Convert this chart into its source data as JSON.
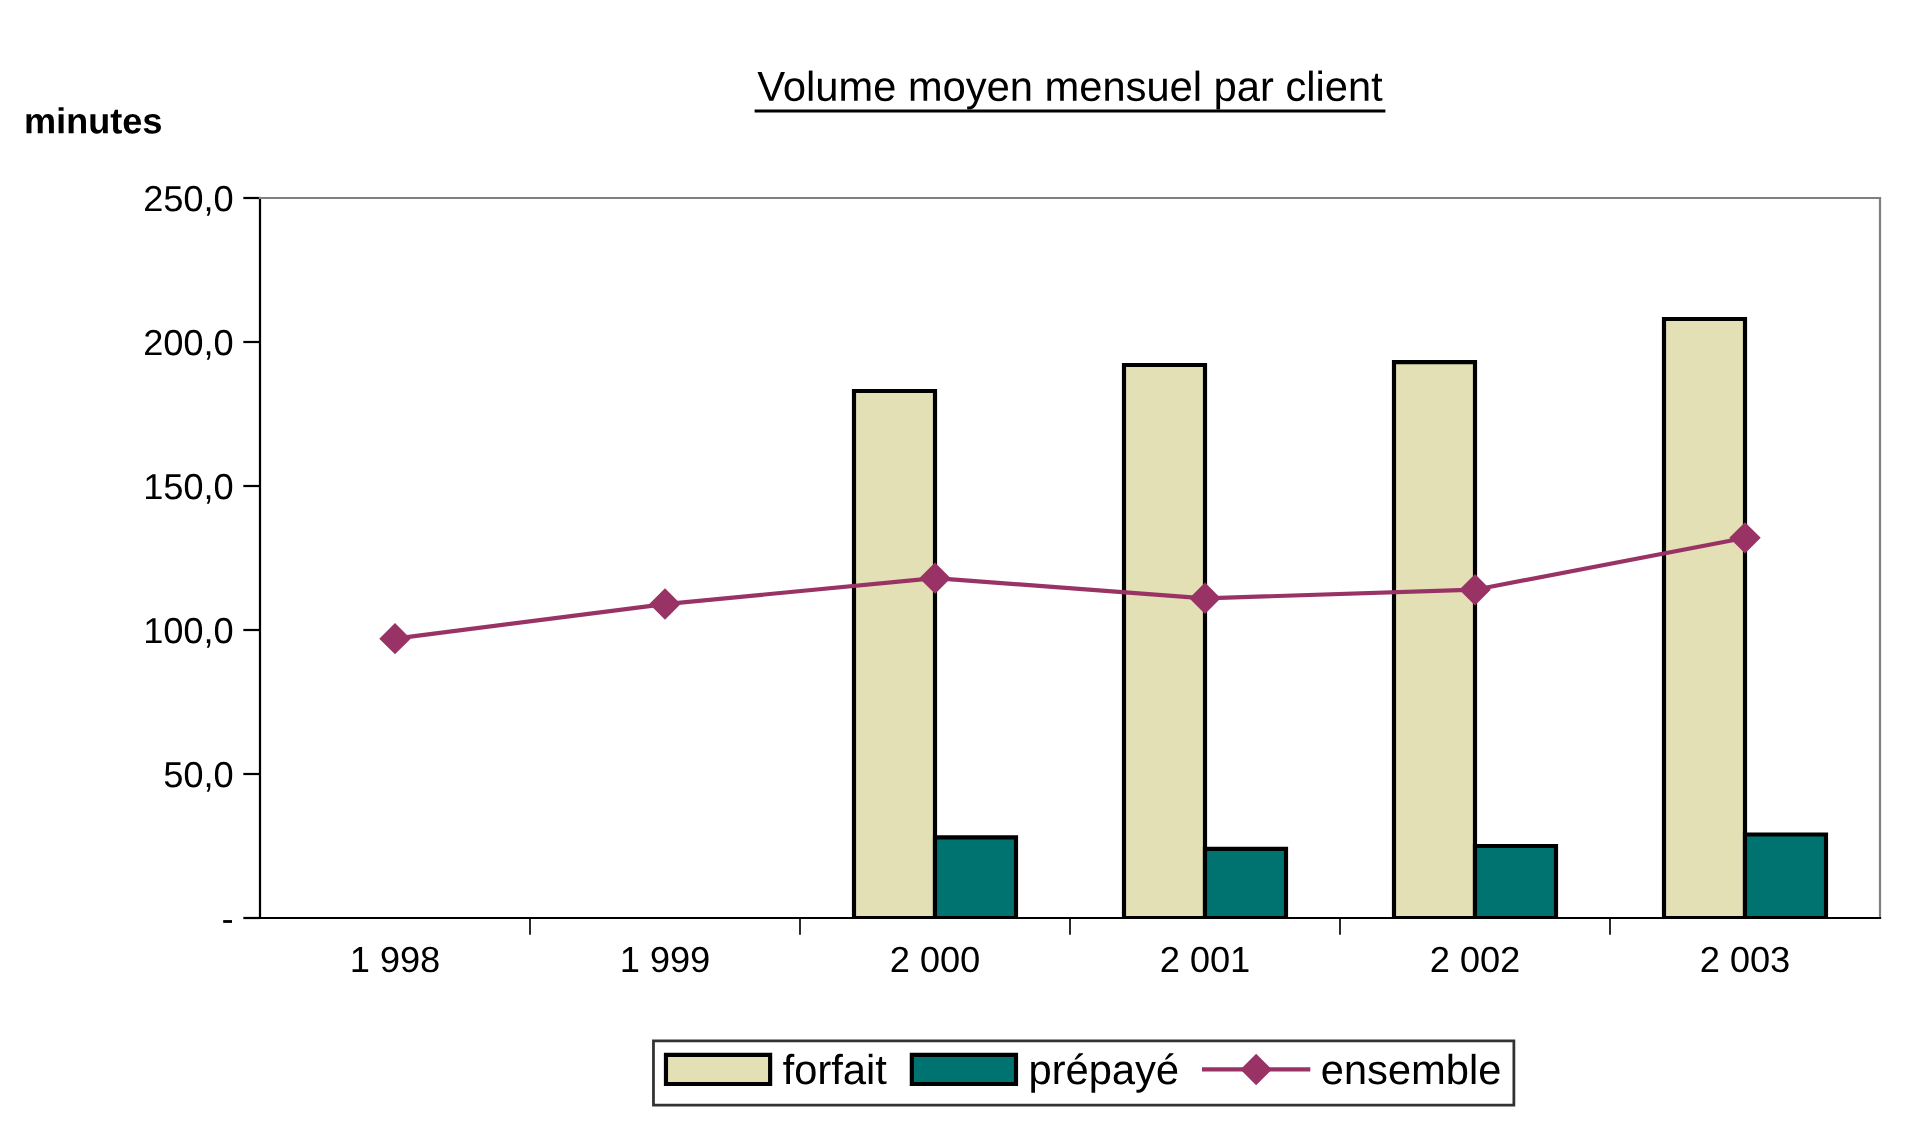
{
  "chart_data": {
    "type": "bar",
    "title": "Volume moyen mensuel par client",
    "ylabel": "minutes",
    "categories": [
      "1 998",
      "1 999",
      "2 000",
      "2 001",
      "2 002",
      "2 003"
    ],
    "series": [
      {
        "name": "forfait",
        "color": "#e2e0b4",
        "values": [
          null,
          null,
          183,
          192,
          193,
          208
        ]
      },
      {
        "name": "prépayé",
        "color": "#007370",
        "values": [
          null,
          null,
          28,
          24,
          25,
          29
        ]
      },
      {
        "name": "ensemble",
        "type": "line",
        "color": "#993366",
        "marker": "diamond",
        "values": [
          97,
          109,
          118,
          111,
          114,
          132
        ]
      }
    ],
    "ylim": [
      0,
      250
    ],
    "yticks": [
      {
        "value": 0,
        "label": "-"
      },
      {
        "value": 50,
        "label": "50,0"
      },
      {
        "value": 100,
        "label": "100,0"
      },
      {
        "value": 150,
        "label": "150,0"
      },
      {
        "value": 200,
        "label": "200,0"
      },
      {
        "value": 250,
        "label": "250,0"
      }
    ],
    "grid": false,
    "legend": "bottom"
  }
}
